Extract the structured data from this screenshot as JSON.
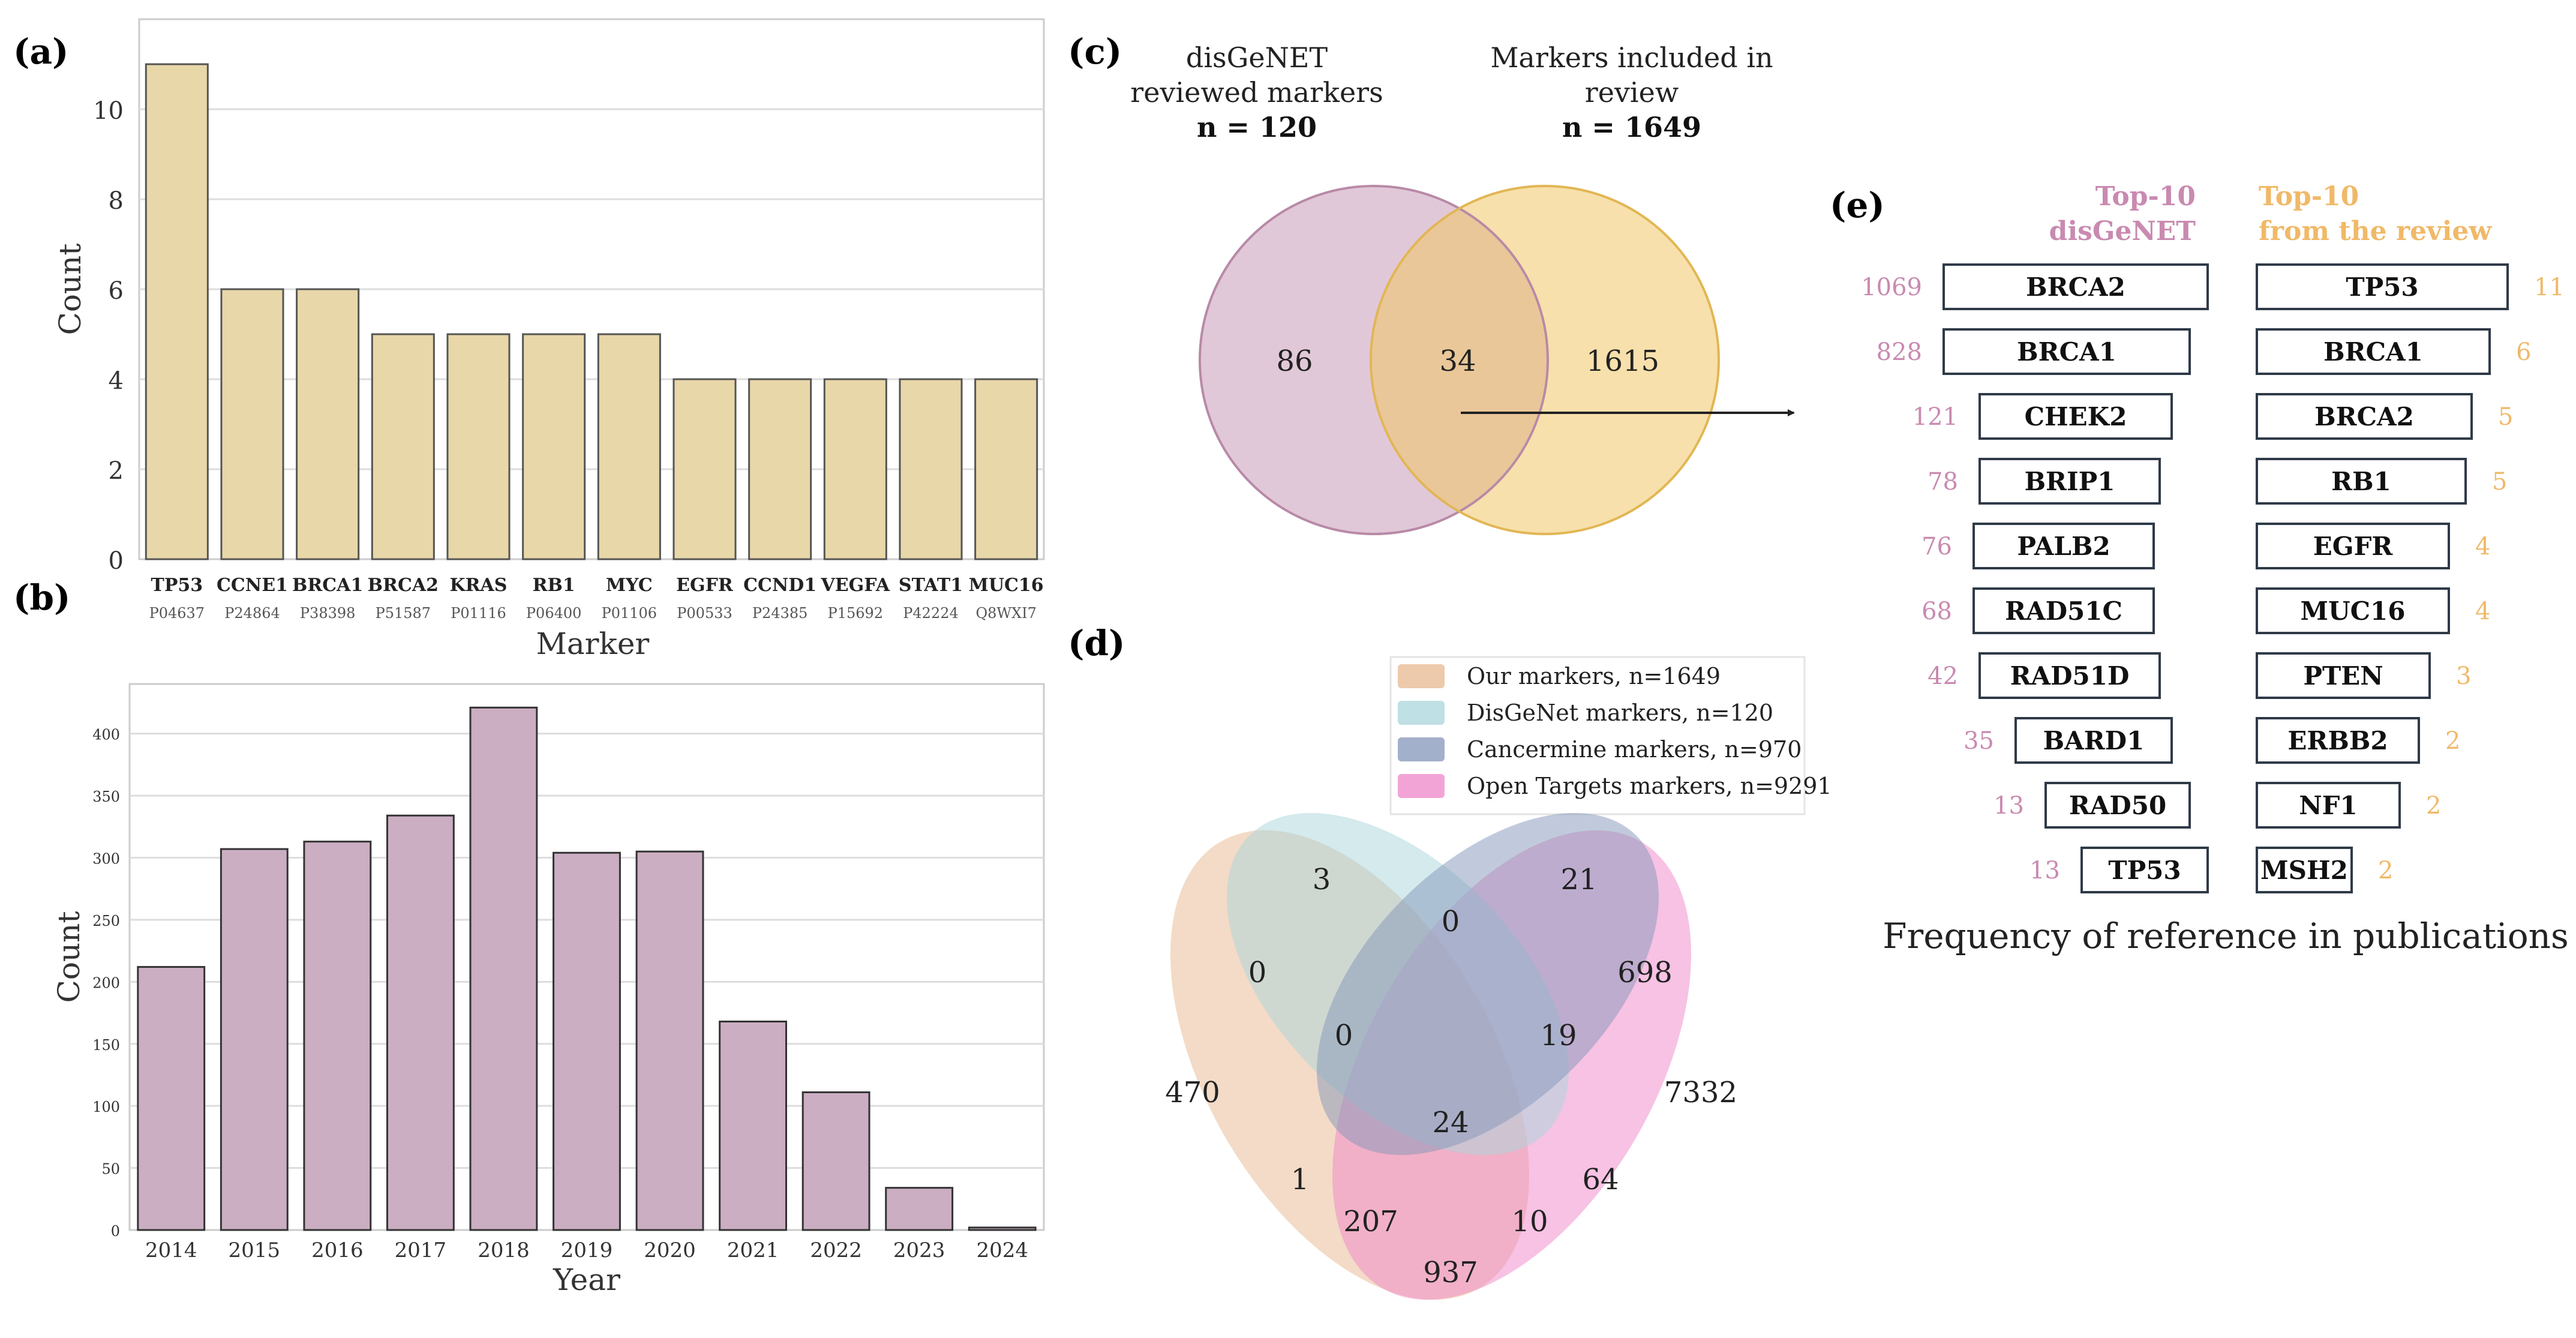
{
  "chart_data": [
    {
      "panel": "(a)",
      "type": "bar",
      "xlabel": "Marker",
      "ylabel": "Count",
      "ylim": [
        0,
        12
      ],
      "yticks": [
        0,
        2,
        4,
        6,
        8,
        10
      ],
      "categories": [
        "TP53",
        "CCNE1",
        "BRCA1",
        "BRCA2",
        "KRAS",
        "RB1",
        "MYC",
        "EGFR",
        "CCND1",
        "VEGFA",
        "STAT1",
        "MUC16"
      ],
      "subcategories": [
        "P04637",
        "P24864",
        "P38398",
        "P51587",
        "P01116",
        "P06400",
        "P01106",
        "P00533",
        "P24385",
        "P15692",
        "P42224",
        "Q8WXI7"
      ],
      "values": [
        11,
        6,
        6,
        5,
        5,
        5,
        5,
        4,
        4,
        4,
        4,
        4
      ],
      "bar_color": "#e8d7a8",
      "grid": true
    },
    {
      "panel": "(b)",
      "type": "bar",
      "xlabel": "Year",
      "ylabel": "Count",
      "ylim": [
        0,
        440
      ],
      "yticks": [
        0,
        50,
        100,
        150,
        200,
        250,
        300,
        350,
        400
      ],
      "categories": [
        "2014",
        "2015",
        "2016",
        "2017",
        "2018",
        "2019",
        "2020",
        "2021",
        "2022",
        "2023",
        "2024"
      ],
      "values": [
        212,
        307,
        313,
        334,
        421,
        304,
        305,
        168,
        111,
        34,
        2
      ],
      "bar_color": "#cbaec2",
      "grid": true
    },
    {
      "panel": "(c)",
      "type": "venn",
      "sets": [
        {
          "title_lines": [
            "disGeNET",
            "reviewed markers"
          ],
          "n_label": "n = 120",
          "color": "#c99bb8"
        },
        {
          "title_lines": [
            "Markers included in",
            "review"
          ],
          "n_label": "n = 1649",
          "color": "#f0c766"
        }
      ],
      "regions": {
        "left_only": "86",
        "intersection": "34",
        "right_only": "1615"
      }
    },
    {
      "panel": "(d)",
      "type": "venn",
      "legend": [
        {
          "label": "Our markers, n=1649",
          "color": "#e7b88f"
        },
        {
          "label": "DisGeNet markers, n=120",
          "color": "#a9d6db"
        },
        {
          "label": "Cancermine markers, n=970",
          "color": "#8496b9"
        },
        {
          "label": "Open Targets markers, n=9291",
          "color": "#ef86c8"
        }
      ],
      "regions": [
        "3",
        "21",
        "0",
        "0",
        "698",
        "0",
        "19",
        "470",
        "7332",
        "24",
        "1",
        "64",
        "207",
        "10",
        "937"
      ]
    },
    {
      "panel": "(e)",
      "type": "table",
      "left_header": [
        "Top-10",
        "disGeNET"
      ],
      "right_header": [
        "Top-10",
        "from the review"
      ],
      "left_color": "#c98ab0",
      "right_color": "#f0b968",
      "left_rows": [
        {
          "gene": "BRCA2",
          "count": "1069"
        },
        {
          "gene": "BRCA1",
          "count": "828"
        },
        {
          "gene": "CHEK2",
          "count": "121"
        },
        {
          "gene": "BRIP1",
          "count": "78"
        },
        {
          "gene": "PALB2",
          "count": "76"
        },
        {
          "gene": "RAD51C",
          "count": "68"
        },
        {
          "gene": "RAD51D",
          "count": "42"
        },
        {
          "gene": "BARD1",
          "count": "35"
        },
        {
          "gene": "RAD50",
          "count": "13"
        },
        {
          "gene": "TP53",
          "count": "13"
        }
      ],
      "right_rows": [
        {
          "gene": "TP53",
          "count": "11"
        },
        {
          "gene": "BRCA1",
          "count": "6"
        },
        {
          "gene": "BRCA2",
          "count": "5"
        },
        {
          "gene": "RB1",
          "count": "5"
        },
        {
          "gene": "EGFR",
          "count": "4"
        },
        {
          "gene": "MUC16",
          "count": "4"
        },
        {
          "gene": "PTEN",
          "count": "3"
        },
        {
          "gene": "ERBB2",
          "count": "2"
        },
        {
          "gene": "NF1",
          "count": "2"
        },
        {
          "gene": "MSH2",
          "count": "2"
        }
      ],
      "caption": "Frequency of reference in publications"
    }
  ]
}
